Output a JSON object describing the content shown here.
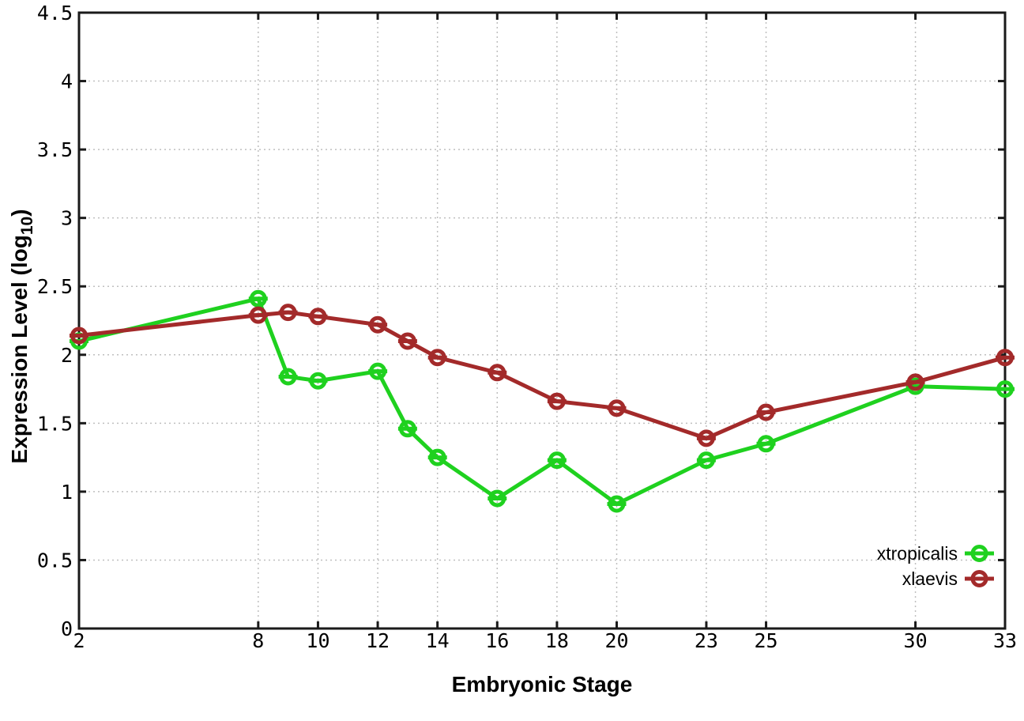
{
  "window": {
    "background": "#ffffff"
  },
  "chart_data": {
    "type": "line",
    "title": "",
    "xlabel": "Embryonic Stage",
    "ylabel": {
      "base": "Expression Level (log",
      "subscript": "10",
      "close": ")"
    },
    "xlim": [
      2,
      33
    ],
    "ylim": [
      0,
      4.5
    ],
    "grid": true,
    "xticks": [
      "2",
      "8",
      "10",
      "12",
      "14",
      "16",
      "18",
      "20",
      "23",
      "25",
      "30",
      "33"
    ],
    "yticks": [
      "0",
      "0.5",
      "1",
      "1.5",
      "2",
      "2.5",
      "3",
      "3.5",
      "4",
      "4.5"
    ],
    "x": [
      2,
      8,
      9,
      10,
      12,
      13,
      14,
      16,
      18,
      20,
      23,
      25,
      30,
      33
    ],
    "series": [
      {
        "name": "xtropicalis",
        "color": "#1fd11f",
        "marker": "open-circle-with-errorbar-cap",
        "values": [
          2.1,
          2.41,
          1.84,
          1.81,
          1.88,
          1.46,
          1.25,
          0.95,
          1.23,
          0.91,
          1.23,
          1.35,
          1.77,
          1.75
        ]
      },
      {
        "name": "xlaevis",
        "color": "#a32a2a",
        "marker": "open-circle-with-errorbar-cap",
        "values": [
          2.14,
          2.29,
          2.31,
          2.28,
          2.22,
          2.1,
          1.98,
          1.87,
          1.66,
          1.61,
          1.39,
          1.58,
          1.8,
          1.98
        ]
      }
    ],
    "legend": {
      "position": "inside-bottom-right",
      "entries": [
        "xtropicalis",
        "xlaevis"
      ]
    },
    "colors": {
      "axis": "#1a1a1a",
      "grid": "#bfbfbf",
      "text": "#000000",
      "background": "#ffffff"
    }
  }
}
